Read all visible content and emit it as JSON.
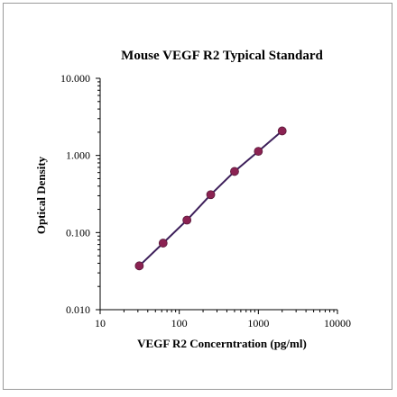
{
  "chart_data": {
    "type": "scatter",
    "title": "Mouse VEGF R2 Typical Standard",
    "xlabel": "VEGF R2 Concerntration (pg/ml)",
    "ylabel": "Optical Density",
    "x_scale": "log",
    "y_scale": "log",
    "xlim": [
      10,
      10000
    ],
    "ylim": [
      0.01,
      10
    ],
    "x_ticks": [
      10,
      100,
      1000,
      10000
    ],
    "x_tick_labels": [
      "10",
      "100",
      "1000",
      "10000"
    ],
    "y_ticks": [
      0.01,
      0.1,
      1,
      10
    ],
    "y_tick_labels": [
      "0.010",
      "0.100",
      "1.000",
      "10.000"
    ],
    "grid": false,
    "series": [
      {
        "x": [
          31.25,
          62.5,
          125,
          250,
          500,
          1000,
          2000
        ],
        "y": [
          0.037,
          0.073,
          0.145,
          0.31,
          0.62,
          1.13,
          2.08
        ],
        "marker_color": "#8b2252",
        "line_color": "#3d1f5a"
      }
    ]
  }
}
